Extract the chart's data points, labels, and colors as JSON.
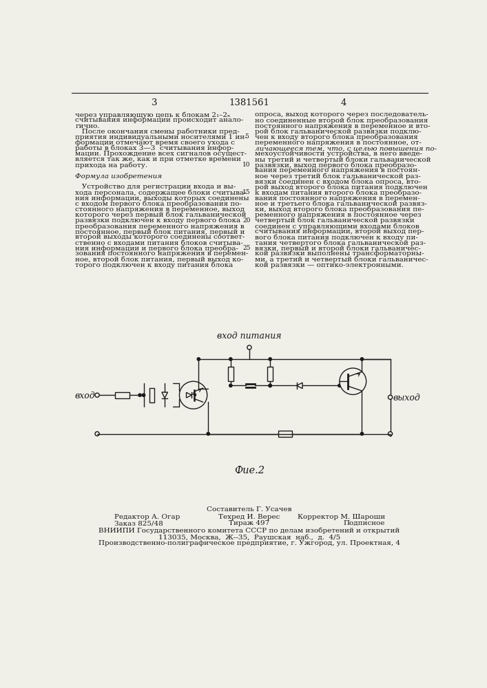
{
  "page_number_left": "3",
  "patent_number": "1381561",
  "page_number_right": "4",
  "left_col_text": [
    "через управляющую цепь к блокам 2₁–2ₙ",
    "считывания информации происходит анало-",
    "гично.",
    "   После окончания смены работники пред-",
    "приятия индивидуальными носителями 1 ин-",
    "формации отмечают время своего ухода с",
    "работы в блоках 3—3  считывания инфор-",
    "мации. Прохождение всех сигналов осущест-",
    "вляется так же, как и при отметке времени",
    "прихода на работу.",
    "",
    "        Формула изобретения",
    "",
    "   Устройство для регистрации входа и вы-",
    "хода персонала, содержащее блоки считыва-",
    "ния информации, выходы которых соединены",
    "с входом первого блока преобразования по-",
    "стоянного напряжения в переменное, выход",
    "которого через первый блок гальванической",
    "развязки подключен к входу первого блока",
    "преобразования переменного напряжения в",
    "постоянное, первый блок питания, первый и",
    "второй выходы которого соединены соответ-",
    "ственно с входами питания блоков считыва-",
    "ния информации и первого блока преобра-",
    "зования постоянного напряжения в перемен-",
    "ное, второй блок питания, первый выход ко-",
    "торого подключен к входу питания блока"
  ],
  "right_col_text": [
    "опроса, выход которого через последователь-",
    "но соединенные второй блок преобразования",
    "постоянного напряжения в переменное и вто-",
    "рой блок гальванической развязки подклю-",
    "чен к входу второго блока преобразования",
    "переменного напряжения в постоянное, от-",
    "личающееся тем, что, с целью повышения по-",
    "мехоустойчивости устройства, в него введе-",
    "ны третий и четвертый блоки гальванической",
    "развязки, выход первого блока преобразо-",
    "вания переменного напряжения в постоян-",
    "ное через третий блок гальванической раз-",
    "вязки соединен с входом блока опроса, вто-",
    "рой выход второго блока питания подключен",
    "к входам питания второго блока преобразо-",
    "вания постоянного напряжения в перемен-",
    "ное и третьего блока гальванической развяз-",
    "ки, выход второго блока преобразования пе-",
    "ременного напряжения в постоянное через",
    "четвертый блок гальванической развязки",
    "соединен с управляющими входами блоков",
    "считывания информации, второй выход пер-",
    "вого блока питания подключен к входу пи-",
    "тания четвертого блока гальванической раз-",
    "вязки, первый и второй блоки гальваничес-",
    "кой развязки выполнены трансформаторны-",
    "ми, а третий и четвертый блоки гальваничес-",
    "кой развязки — оптико-электронными."
  ],
  "bg_color": "#f0efe8",
  "text_color": "#1a1a1a",
  "line_color": "#1a1a1a",
  "circuit": {
    "label_питания": "вход питания",
    "label_вход": "вход",
    "label_выход": "выход",
    "label_fig": "Фие.2"
  },
  "footer": {
    "line1": "Составитель Г. Усачев",
    "line2_left": "Редактор А. Огар",
    "line2_mid": "Техред И. Верес",
    "line2_right": "Корректор М. Шароши",
    "line3_left": "Заказ 825/48",
    "line3_mid": "Тираж 497",
    "line3_right": "Подписное",
    "line4": "ВНИИПИ Государственного комитета СССР по делам изобретений и открытий",
    "line5": "113035, Москва,  Ж--35,  Раушская  наб.,  д.  4/5",
    "line6": "Производственно-полиграфическое предприятие, г. Ужгород, ул. Проектная, 4"
  }
}
